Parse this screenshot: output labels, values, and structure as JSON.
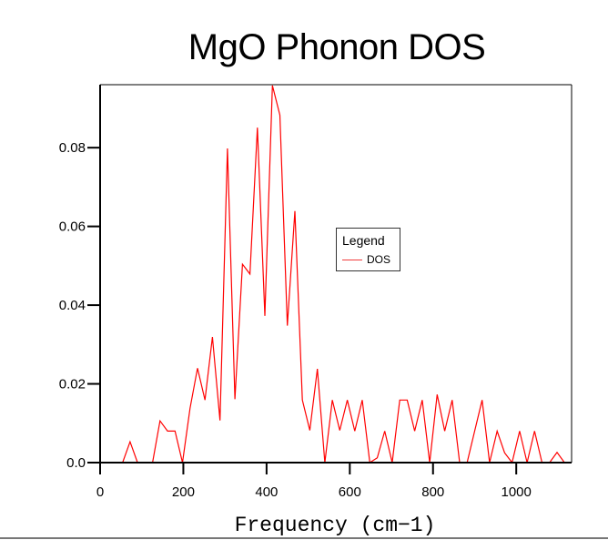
{
  "chart_data": {
    "type": "line",
    "title": "MgO Phonon DOS",
    "xlabel": "Frequency (cm−1)",
    "ylabel": "",
    "xlim": [
      0,
      1133
    ],
    "ylim": [
      0,
      0.096
    ],
    "xticks": [
      0,
      200,
      400,
      600,
      800,
      1000
    ],
    "xtick_labels": [
      "0",
      "200",
      "400",
      "600",
      "800",
      "1000"
    ],
    "yticks": [
      0,
      0.02,
      0.04,
      0.06,
      0.08
    ],
    "ytick_labels": [
      "0.0",
      "0.02",
      "0.04",
      "0.06",
      "0.08"
    ],
    "grid": false,
    "legend": {
      "title": "Legend",
      "placement": "center-right"
    },
    "series": [
      {
        "name": "DOS",
        "color": "#ff0000",
        "x": [
          0,
          18,
          36,
          54,
          72,
          90,
          108,
          126,
          144,
          162,
          180,
          198,
          216,
          234,
          252,
          270,
          288,
          306,
          324,
          342,
          360,
          378,
          396,
          414,
          432,
          450,
          468,
          486,
          504,
          522,
          540,
          558,
          576,
          594,
          612,
          630,
          648,
          666,
          684,
          702,
          720,
          738,
          756,
          774,
          792,
          810,
          828,
          846,
          864,
          882,
          900,
          918,
          936,
          954,
          972,
          990,
          1008,
          1026,
          1044,
          1062,
          1080,
          1098,
          1116,
          1134
        ],
        "y": [
          0,
          0,
          0,
          0,
          0.0053,
          0,
          0,
          0,
          0.0106,
          0.008,
          0.008,
          0,
          0.0138,
          0.024,
          0.0159,
          0.0319,
          0.0107,
          0.0798,
          0.0161,
          0.0504,
          0.0479,
          0.0851,
          0.0373,
          0.0958,
          0.0883,
          0.0348,
          0.0639,
          0.0159,
          0.0082,
          0.0238,
          0,
          0.0159,
          0.0082,
          0.0159,
          0.008,
          0.0159,
          0,
          0.0012,
          0.008,
          0,
          0.0159,
          0.0159,
          0.008,
          0.0159,
          0,
          0.0173,
          0.008,
          0.0159,
          0,
          0,
          0.008,
          0.0159,
          0,
          0.008,
          0.0025,
          0,
          0.008,
          0,
          0.008,
          0,
          0,
          0.0026,
          0,
          0
        ]
      }
    ]
  }
}
